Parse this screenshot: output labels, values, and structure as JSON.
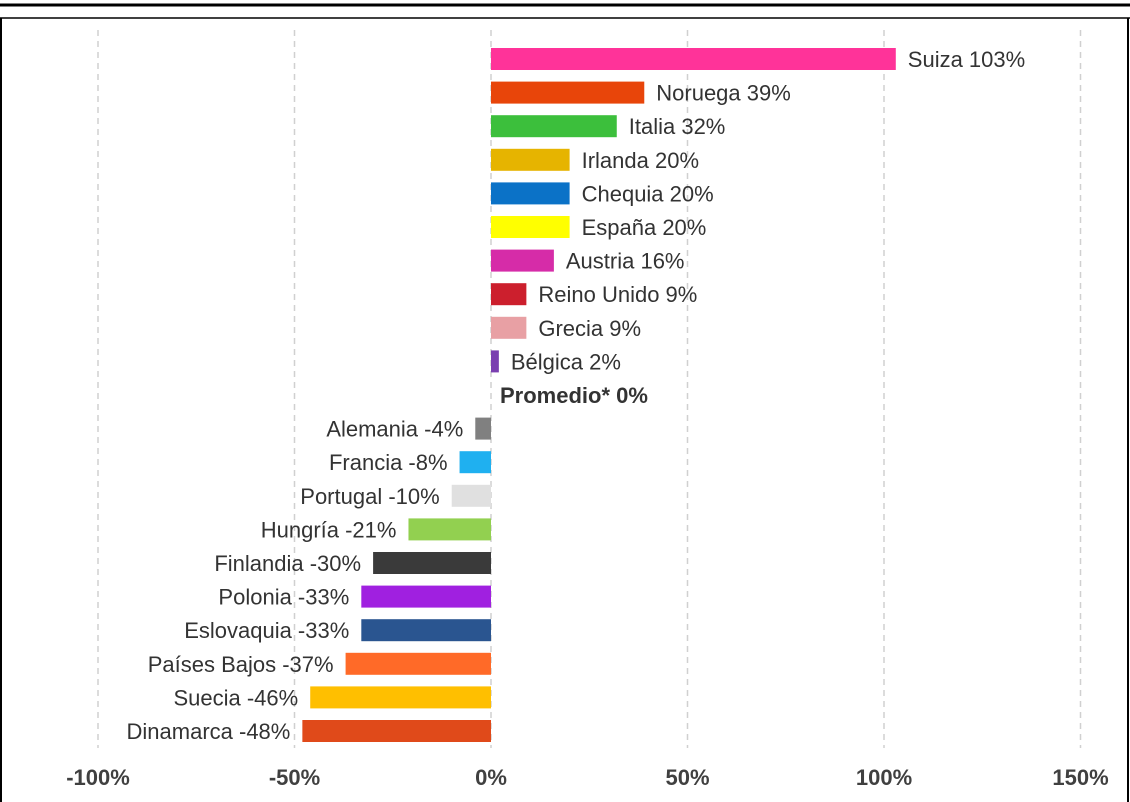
{
  "chart_data": {
    "type": "bar",
    "orientation": "horizontal",
    "categories": [
      "Suiza",
      "Noruega",
      "Italia",
      "Irlanda",
      "Chequia",
      "España",
      "Austria",
      "Reino Unido",
      "Grecia",
      "Bélgica",
      "Promedio*",
      "Alemania",
      "Francia",
      "Portugal",
      "Hungría",
      "Finlandia",
      "Polonia",
      "Eslovaquia",
      "Países Bajos",
      "Suecia",
      "Dinamarca"
    ],
    "values": [
      103,
      39,
      32,
      20,
      20,
      20,
      16,
      9,
      9,
      2,
      0,
      -4,
      -8,
      -10,
      -21,
      -30,
      -33,
      -33,
      -37,
      -46,
      -48
    ],
    "labels": [
      "Suiza 103%",
      "Noruega 39%",
      "Italia 32%",
      "Irlanda 20%",
      "Chequia 20%",
      "España 20%",
      "Austria 16%",
      "Reino Unido 9%",
      "Grecia 9%",
      "Bélgica 2%",
      "Promedio* 0%",
      "Alemania -4%",
      "Francia -8%",
      "Portugal -10%",
      "Hungría -21%",
      "Finlandia -30%",
      "Polonia -33%",
      "Eslovaquia -33%",
      "Países Bajos -37%",
      "Suecia -46%",
      "Dinamarca -48%"
    ],
    "bold_labels": [
      "Promedio* 0%"
    ],
    "colors": [
      "#ff3399",
      "#e8450a",
      "#3cbf3c",
      "#e6b400",
      "#0b72c7",
      "#ffff00",
      "#d62ca8",
      "#cc1f2d",
      "#e8a0a4",
      "#7a3fb0",
      "#ffffff",
      "#808080",
      "#1fb0f0",
      "#e0e0e0",
      "#92d050",
      "#3a3a3a",
      "#a020e0",
      "#2a5590",
      "#ff6a28",
      "#ffbf00",
      "#e04a1a"
    ],
    "xlim": [
      -100,
      150
    ],
    "xticks": [
      -100,
      -50,
      0,
      50,
      100,
      150
    ],
    "xtick_labels": [
      "-100%",
      "-50%",
      "0%",
      "50%",
      "100%",
      "150%"
    ],
    "grid": "vertical dashed",
    "title": "",
    "xlabel": "",
    "ylabel": ""
  }
}
